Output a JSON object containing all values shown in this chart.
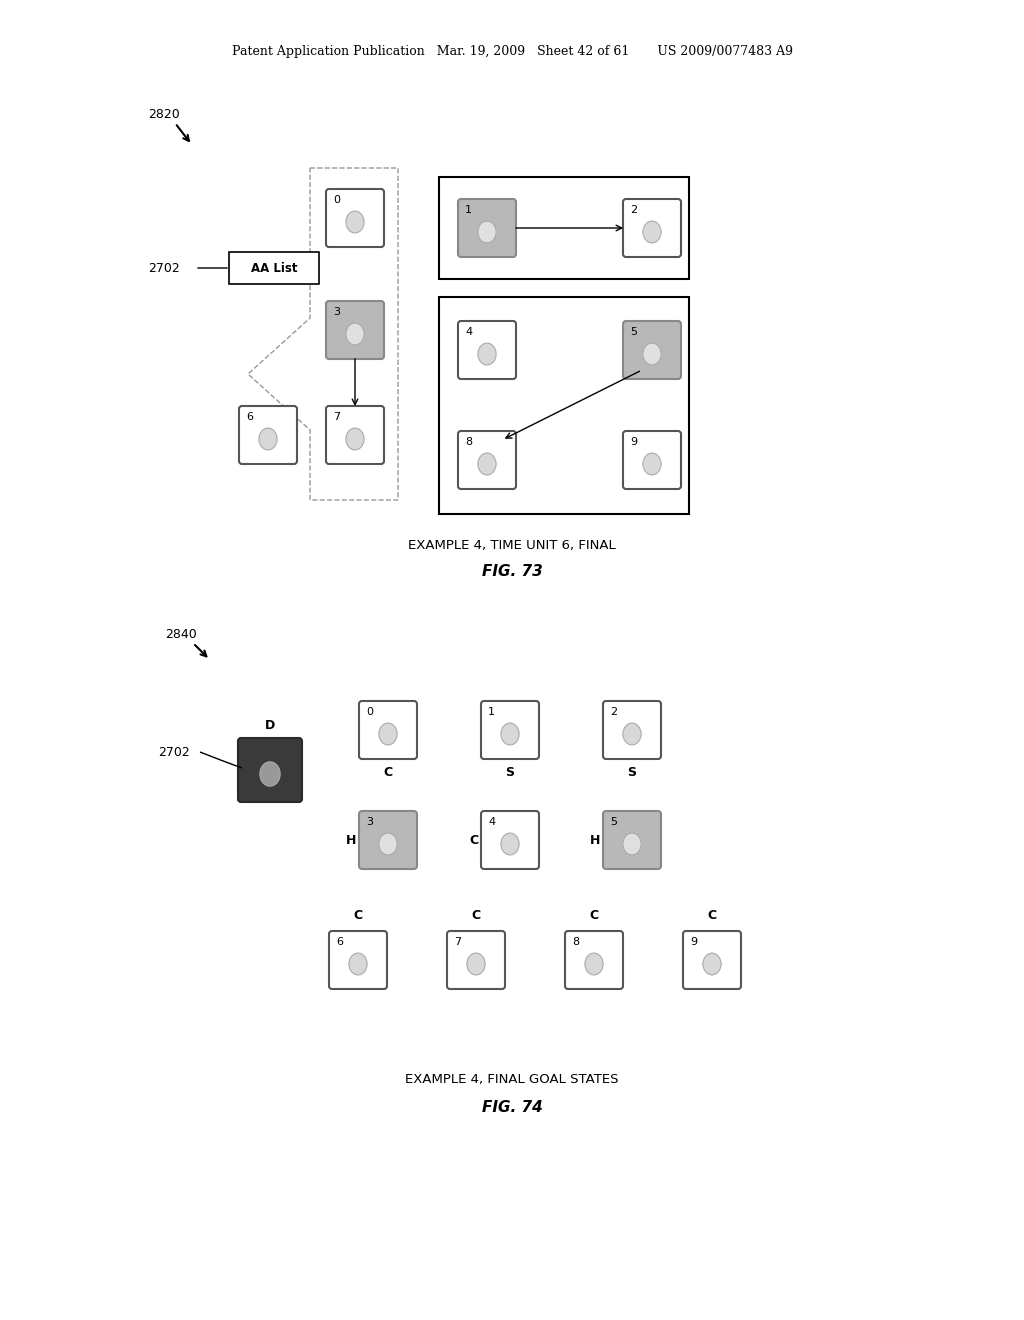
{
  "bg_color": "#ffffff",
  "header_text": "Patent Application Publication   Mar. 19, 2009   Sheet 42 of 61       US 2009/0077483 A9",
  "fig73_caption": "EXAMPLE 4, TIME UNIT 6, FINAL",
  "fig73_label": "FIG. 73",
  "fig74_caption": "EXAMPLE 4, FINAL GOAL STATES",
  "fig74_label": "FIG. 74"
}
